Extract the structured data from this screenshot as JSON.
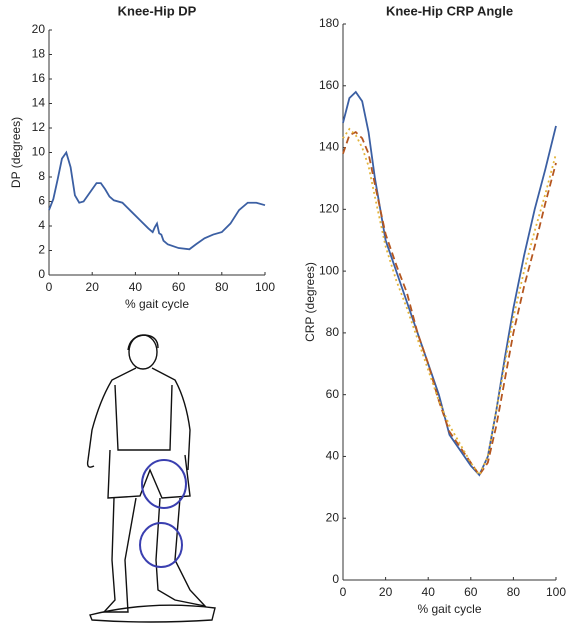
{
  "chart_data": [
    {
      "type": "line",
      "title": "Knee-Hip DP",
      "x_label": "% gait cycle",
      "y_label": "DP (degrees)",
      "x": [
        0,
        2,
        4,
        6,
        8,
        10,
        12,
        14,
        16,
        18,
        20,
        22,
        24,
        26,
        28,
        30,
        34,
        38,
        42,
        46,
        48,
        49,
        50,
        51,
        52,
        53,
        55,
        60,
        65,
        68,
        72,
        76,
        80,
        84,
        88,
        92,
        96,
        100
      ],
      "series": [
        {
          "color": "#3b5fa3",
          "style": "solid",
          "values": [
            5.3,
            6.2,
            7.8,
            9.5,
            10.0,
            8.8,
            6.5,
            5.9,
            6.0,
            6.5,
            7.0,
            7.5,
            7.5,
            7.0,
            6.4,
            6.1,
            5.9,
            5.2,
            4.5,
            3.8,
            3.5,
            3.9,
            4.2,
            3.4,
            3.3,
            2.8,
            2.5,
            2.2,
            2.1,
            2.5,
            3.0,
            3.3,
            3.5,
            4.2,
            5.3,
            5.9,
            5.9,
            5.7
          ]
        }
      ],
      "xlim": [
        0,
        100
      ],
      "xticks": [
        0,
        20,
        40,
        60,
        80,
        100
      ],
      "ylim": [
        0,
        20
      ],
      "yticks": [
        0,
        2,
        4,
        6,
        8,
        10,
        12,
        14,
        16,
        18,
        20
      ]
    },
    {
      "type": "line",
      "title": "Knee-Hip CRP Angle",
      "x_label": "% gait cycle",
      "y_label": "CRP (degrees)",
      "x": [
        0,
        3,
        6,
        9,
        12,
        15,
        20,
        25,
        30,
        35,
        40,
        45,
        50,
        55,
        60,
        64,
        68,
        72,
        76,
        80,
        85,
        90,
        95,
        100
      ],
      "series": [
        {
          "color": "#3b5fa3",
          "style": "solid",
          "values": [
            148,
            156,
            158,
            155,
            145,
            130,
            110,
            100,
            90,
            80,
            70,
            60,
            47,
            42,
            37,
            34,
            40,
            55,
            72,
            88,
            105,
            120,
            133,
            147
          ]
        },
        {
          "color": "#b5561f",
          "style": "dashed",
          "values": [
            138,
            144,
            145,
            143,
            138,
            128,
            112,
            102,
            93,
            80,
            70,
            58,
            48,
            43,
            38,
            34,
            38,
            50,
            65,
            80,
            95,
            108,
            122,
            135
          ]
        },
        {
          "color": "#e3b43a",
          "style": "dotted",
          "values": [
            143,
            146,
            144,
            140,
            134,
            124,
            108,
            97,
            88,
            78,
            68,
            58,
            50,
            44,
            38,
            34,
            40,
            55,
            70,
            85,
            100,
            113,
            125,
            138
          ]
        }
      ],
      "xlim": [
        0,
        100
      ],
      "xticks": [
        0,
        20,
        40,
        60,
        80,
        100
      ],
      "ylim": [
        0,
        180
      ],
      "yticks": [
        0,
        20,
        40,
        60,
        80,
        100,
        120,
        140,
        160,
        180
      ]
    }
  ]
}
